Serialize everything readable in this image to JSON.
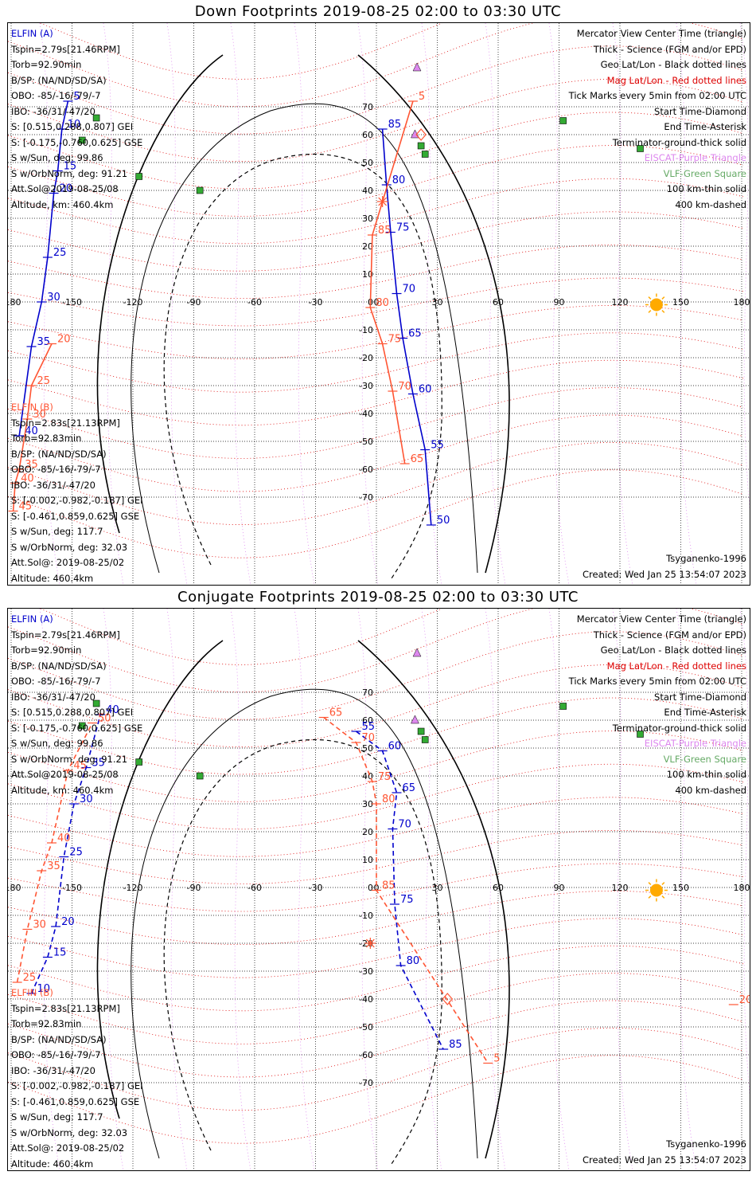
{
  "panels": [
    {
      "title": "Down Footprints 2019-08-25 02:00 to 03:30 UTC",
      "sc_a": {
        "name": "ELFIN (A)",
        "lines": [
          "Tspin=2.79s[21.46RPM]",
          "Torb=92.90min",
          "B/SP: (NA/ND/SD/SA)",
          "OBO: -85/-16/-79/-7",
          "IBO: -36/31/-47/20",
          "S: [0.515,0.288,0.807] GEI",
          "S: [-0.175,-0.760,0.625] GSE",
          "S w/Sun, deg: 99.86",
          "S w/OrbNorm, deg: 91.21",
          "Att.Sol@2019-08-25/08",
          "Altitude, km: 460.4km"
        ]
      },
      "sc_b": {
        "name": "ELFIN (B)",
        "lines": [
          "Tspin=2.83s[21.13RPM]",
          "Torb=92.83min",
          "B/SP: (NA/ND/SD/SA)",
          "OBO: -85/-16/-79/-7",
          "IBO: -36/31/-47/20",
          "S: [-0.002,-0.982,-0.187] GEI",
          "S: [-0.461,0.859,0.625] GSE",
          "S w/Sun, deg: 117.7",
          "S w/OrbNorm, deg: 32.03",
          "Att.Sol@: 2019-08-25/02",
          "Altitude: 460.4km"
        ]
      },
      "legend": [
        "Mercator View Center Time (triangle)",
        "Thick - Science (FGM and/or EPD)",
        "Geo Lat/Lon - Black dotted lines",
        "Mag Lat/Lon - Red dotted lines",
        "Tick Marks every 5min from 02:00 UTC",
        "Start Time-Diamond",
        "End Time-Asterisk",
        "Terminator-ground-thick solid",
        "EISCAT-Purple Triangle",
        "VLF-Green Square",
        "100 km-thin solid",
        "400 km-dashed"
      ],
      "model": "Tsyganenko-1996",
      "created": "Created: Wed Jan 25 13:54:07 2023"
    },
    {
      "title": "Conjugate Footprints 2019-08-25 02:00 to 03:30 UTC",
      "sc_a": {
        "name": "ELFIN (A)",
        "lines": [
          "Tspin=2.79s[21.46RPM]",
          "Torb=92.90min",
          "B/SP: (NA/ND/SD/SA)",
          "OBO: -85/-16/-79/-7",
          "IBO: -36/31/-47/20",
          "S: [0.515,0.288,0.807] GEI",
          "S: [-0.175,-0.760,0.625] GSE",
          "S w/Sun, deg: 99.86",
          "S w/OrbNorm, deg: 91.21",
          "Att.Sol@2019-08-25/08",
          "Altitude, km: 460.4km"
        ]
      },
      "sc_b": {
        "name": "ELFIN (B)",
        "lines": [
          "Tspin=2.83s[21.13RPM]",
          "Torb=92.83min",
          "B/SP: (NA/ND/SD/SA)",
          "OBO: -85/-16/-79/-7",
          "IBO: -36/31/-47/20",
          "S: [-0.002,-0.982,-0.187] GEI",
          "S: [-0.461,0.859,0.625] GSE",
          "S w/Sun, deg: 117.7",
          "S w/OrbNorm, deg: 32.03",
          "Att.Sol@: 2019-08-25/02",
          "Altitude: 460.4km"
        ]
      },
      "legend": [
        "Mercator View Center Time (triangle)",
        "Thick - Science (FGM and/or EPD)",
        "Geo Lat/Lon - Black dotted lines",
        "Mag Lat/Lon - Red dotted lines",
        "Tick Marks every 5min from 02:00 UTC",
        "Start Time-Diamond",
        "End Time-Asterisk",
        "Terminator-ground-thick solid",
        "EISCAT-Purple Triangle",
        "VLF-Green Square",
        "100 km-thin solid",
        "400 km-dashed"
      ],
      "model": "Tsyganenko-1996",
      "created": "Created: Wed Jan 25 13:54:07 2023"
    }
  ],
  "colors": {
    "sc_a": "#0000cc",
    "sc_b": "#ff5533",
    "eiscat": "#dd88ee",
    "vlf": "#33aa33",
    "mag_grid": "#dd0000",
    "geo_grid": "#000000",
    "sun": "#ffaa00"
  },
  "chart_data": [
    {
      "type": "scatter",
      "title": "Down Footprints 2019-08-25 02:00 to 03:30 UTC",
      "xlim": [
        -180,
        180
      ],
      "x_ticks": [
        -180,
        -150,
        -120,
        -90,
        -60,
        -30,
        0,
        30,
        60,
        90,
        120,
        150,
        180
      ],
      "y_ticks": [
        70,
        60,
        50,
        40,
        30,
        20,
        10,
        0,
        -10,
        -20,
        -30,
        -40,
        -50,
        -60,
        -70
      ],
      "grid": true,
      "series": [
        {
          "name": "ELFIN (A)",
          "line": "solid",
          "points": [
            {
              "x": -152,
              "y": 72,
              "label": "5"
            },
            {
              "x": -155,
              "y": 62,
              "label": "10"
            },
            {
              "x": -157,
              "y": 47,
              "label": "15"
            },
            {
              "x": -159,
              "y": 39,
              "label": "20"
            },
            {
              "x": -162,
              "y": 16,
              "label": "25"
            },
            {
              "x": -165,
              "y": 0,
              "label": "30"
            },
            {
              "x": -170,
              "y": -16,
              "label": "35"
            },
            {
              "x": -176,
              "y": -48,
              "label": "40"
            },
            {
              "x": 3,
              "y": 62,
              "label": "85"
            },
            {
              "x": 5,
              "y": 42,
              "label": "80"
            },
            {
              "x": 7,
              "y": 25,
              "label": "75"
            },
            {
              "x": 10,
              "y": 3,
              "label": "70"
            },
            {
              "x": 13,
              "y": -13,
              "label": "65"
            },
            {
              "x": 18,
              "y": -33,
              "label": "60"
            },
            {
              "x": 24,
              "y": -53,
              "label": "55"
            },
            {
              "x": 27,
              "y": -80,
              "label": "50"
            }
          ]
        },
        {
          "name": "ELFIN (B)",
          "line": "solid",
          "points": [
            {
              "x": -160,
              "y": -15,
              "label": "20"
            },
            {
              "x": -170,
              "y": -30,
              "label": "25"
            },
            {
              "x": -172,
              "y": -42,
              "label": "30"
            },
            {
              "x": -176,
              "y": -60,
              "label": "35"
            },
            {
              "x": -178,
              "y": -65,
              "label": "40"
            },
            {
              "x": -179,
              "y": -75,
              "label": "45"
            },
            {
              "x": 18,
              "y": 72,
              "label": "5"
            },
            {
              "x": -2,
              "y": 24,
              "label": "85"
            },
            {
              "x": -3,
              "y": -2,
              "label": "80"
            },
            {
              "x": 3,
              "y": -15,
              "label": "75"
            },
            {
              "x": 8,
              "y": -32,
              "label": "70"
            },
            {
              "x": 14,
              "y": -58,
              "label": "65"
            }
          ]
        }
      ],
      "markers": {
        "start_diamond": {
          "x": 22,
          "y": 60
        },
        "end_asterisk": {
          "x": 3,
          "y": 36
        },
        "view_center_triangle": {
          "x": 20,
          "y": 84
        }
      }
    },
    {
      "type": "scatter",
      "title": "Conjugate Footprints 2019-08-25 02:00 to 03:30 UTC",
      "xlim": [
        -180,
        180
      ],
      "x_ticks": [
        -180,
        -150,
        -120,
        -90,
        -60,
        -30,
        0,
        30,
        60,
        90,
        120,
        150,
        180
      ],
      "y_ticks": [
        70,
        60,
        50,
        40,
        30,
        20,
        10,
        0,
        -10,
        -20,
        -30,
        -40,
        -50,
        -60,
        -70
      ],
      "grid": true,
      "series": [
        {
          "name": "ELFIN (A)",
          "line": "dashed",
          "points": [
            {
              "x": -170,
              "y": -38,
              "label": "10"
            },
            {
              "x": -162,
              "y": -25,
              "label": "15"
            },
            {
              "x": -158,
              "y": -14,
              "label": "20"
            },
            {
              "x": -154,
              "y": 11,
              "label": "25"
            },
            {
              "x": -149,
              "y": 30,
              "label": "30"
            },
            {
              "x": -143,
              "y": 43,
              "label": "35"
            },
            {
              "x": -136,
              "y": 62,
              "label": "40"
            },
            {
              "x": -10,
              "y": 56,
              "label": "55"
            },
            {
              "x": 3,
              "y": 49,
              "label": "60"
            },
            {
              "x": 10,
              "y": 34,
              "label": "65"
            },
            {
              "x": 8,
              "y": 21,
              "label": "70"
            },
            {
              "x": 9,
              "y": -6,
              "label": "75"
            },
            {
              "x": 12,
              "y": -28,
              "label": "80"
            },
            {
              "x": 33,
              "y": -58,
              "label": "85"
            }
          ]
        },
        {
          "name": "ELFIN (B)",
          "line": "dashed",
          "points": [
            {
              "x": -177,
              "y": -34,
              "label": "25"
            },
            {
              "x": -172,
              "y": -15,
              "label": "30"
            },
            {
              "x": -165,
              "y": 6,
              "label": "35"
            },
            {
              "x": -160,
              "y": 16,
              "label": "40"
            },
            {
              "x": -152,
              "y": 42,
              "label": "45"
            },
            {
              "x": -140,
              "y": 59,
              "label": "50"
            },
            {
              "x": -26,
              "y": 61,
              "label": "65"
            },
            {
              "x": -10,
              "y": 52,
              "label": "70"
            },
            {
              "x": -2,
              "y": 38,
              "label": "75"
            },
            {
              "x": 0,
              "y": 30,
              "label": "80"
            },
            {
              "x": 0,
              "y": -1,
              "label": "85"
            },
            {
              "x": 55,
              "y": -63,
              "label": "5"
            },
            {
              "x": 176,
              "y": -42,
              "label": "20"
            }
          ]
        }
      ],
      "markers": {
        "start_diamond": {
          "x": 35,
          "y": -40
        },
        "end_asterisk": {
          "x": -3,
          "y": -20
        },
        "view_center_triangle": {
          "x": 20,
          "y": 84
        }
      }
    }
  ]
}
